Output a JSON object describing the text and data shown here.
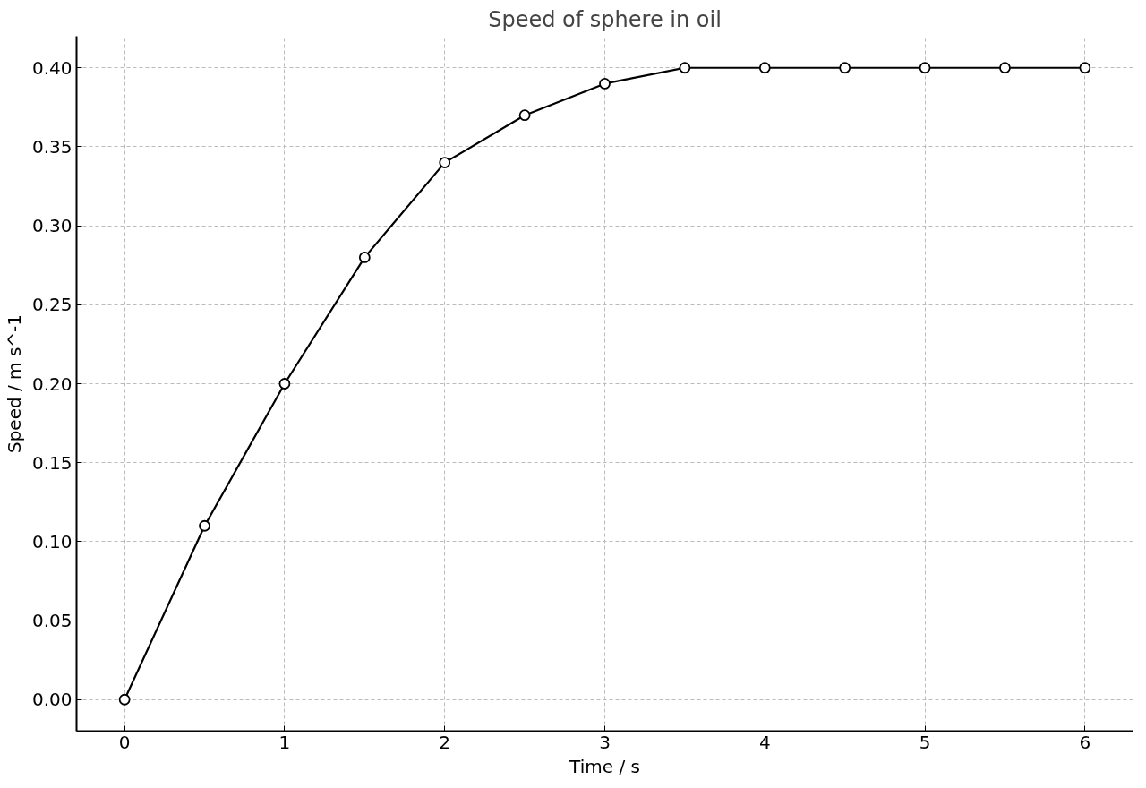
{
  "chart_data": {
    "type": "line",
    "title": "Speed of sphere in oil",
    "xlabel": "Time / s",
    "ylabel": "Speed / m s^-1",
    "x": [
      0,
      0.5,
      1,
      1.5,
      2,
      2.5,
      3,
      3.5,
      4,
      4.5,
      5,
      5.5,
      6
    ],
    "series": [
      {
        "color": "#000000",
        "values": [
          0,
          0.11,
          0.2,
          0.28,
          0.34,
          0.37,
          0.39,
          0.4,
          0.4,
          0.4,
          0.4,
          0.4,
          0.4
        ]
      }
    ],
    "xlim": [
      -0.3,
      6.3
    ],
    "ylim": [
      -0.02,
      0.42
    ],
    "xticks": [
      0,
      1,
      2,
      3,
      4,
      5,
      6
    ],
    "yticks": [
      {
        "value": 0,
        "label": "0.00"
      },
      {
        "value": 0.05,
        "label": "0.05"
      },
      {
        "value": 0.1,
        "label": "0.10"
      },
      {
        "value": 0.15,
        "label": "0.15"
      },
      {
        "value": 0.2,
        "label": "0.20"
      },
      {
        "value": 0.25,
        "label": "0.25"
      },
      {
        "value": 0.3,
        "label": "0.30"
      },
      {
        "value": 0.35,
        "label": "0.35"
      },
      {
        "value": 0.4,
        "label": "0.40"
      }
    ],
    "grid": true,
    "marker": "circle",
    "line_style": "solid"
  }
}
